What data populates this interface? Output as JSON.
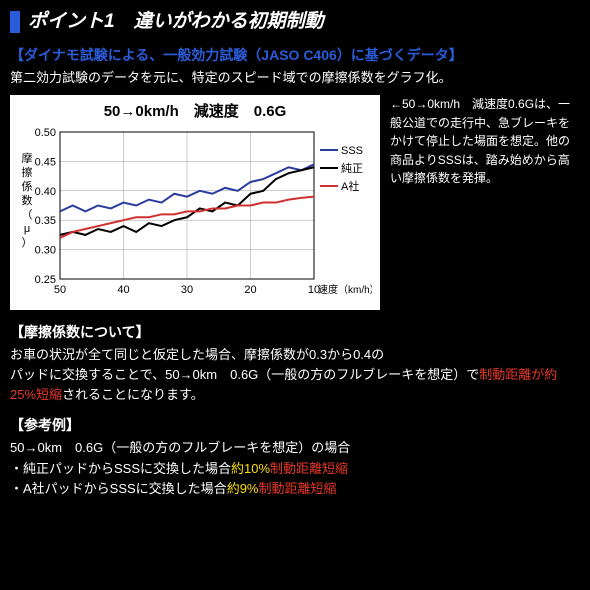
{
  "header": {
    "title": "ポイント1　違いがわかる初期制動"
  },
  "subtitle": "【ダイナモ試験による、一般効力試験（JASO C406）に基づくデータ】",
  "desc": "第二効力試験のデータを元に、特定のスピード域での摩擦係数をグラフ化。",
  "chart": {
    "title": "50→0km/h　減速度　0.6G",
    "type": "line",
    "ylabel": "摩擦係数（μ）",
    "xlabel": "速度（km/h）",
    "ylim": [
      0.25,
      0.5
    ],
    "yticks": [
      0.25,
      0.3,
      0.35,
      0.4,
      0.45,
      0.5
    ],
    "xlim_reversed": true,
    "xticks": [
      50,
      40,
      30,
      20,
      10
    ],
    "x_values": [
      50,
      48,
      46,
      44,
      42,
      40,
      38,
      36,
      34,
      32,
      30,
      28,
      26,
      24,
      22,
      20,
      18,
      16,
      14,
      12,
      10
    ],
    "series": [
      {
        "name": "SSS",
        "color": "#2a3c9e",
        "width": 2,
        "values": [
          0.365,
          0.375,
          0.365,
          0.375,
          0.37,
          0.38,
          0.375,
          0.385,
          0.38,
          0.395,
          0.39,
          0.4,
          0.395,
          0.405,
          0.4,
          0.415,
          0.42,
          0.43,
          0.44,
          0.435,
          0.445
        ]
      },
      {
        "name": "純正",
        "color": "#000000",
        "width": 2,
        "values": [
          0.325,
          0.33,
          0.325,
          0.335,
          0.33,
          0.34,
          0.33,
          0.345,
          0.34,
          0.35,
          0.355,
          0.37,
          0.365,
          0.38,
          0.375,
          0.395,
          0.4,
          0.42,
          0.43,
          0.435,
          0.44
        ]
      },
      {
        "name": "A社",
        "color": "#d03030",
        "width": 2,
        "values": [
          0.32,
          0.33,
          0.335,
          0.34,
          0.345,
          0.35,
          0.355,
          0.355,
          0.36,
          0.36,
          0.365,
          0.365,
          0.37,
          0.37,
          0.375,
          0.375,
          0.38,
          0.38,
          0.385,
          0.388,
          0.39
        ]
      }
    ],
    "axis_color": "#000",
    "grid_color": "#999",
    "label_fontsize": 11,
    "legend_fontsize": 11
  },
  "side_note": "←50→0km/h　減速度0.6Gは、一般公道での走行中、急ブレーキをかけて停止した場面を想定。他の商品よりSSSは、踏み始めから高い摩擦係数を発揮。",
  "section1": {
    "head": "【摩擦係数について】",
    "t1": "お車の状況が全て同じと仮定した場合、摩擦係数が0.3から0.4の",
    "t2a": "パッドに交換することで、50→0km　0.6G（一般の方のフルブレーキを想定）で",
    "t2b": "制動距離が約25%短縮",
    "t2c": "されることになります。"
  },
  "section2": {
    "head": "【参考例】",
    "l1": "50→0km　0.6G（一般の方のフルブレーキを想定）の場合",
    "l2a": "・純正パッドからSSSに交換した場合",
    "l2b": "約10%",
    "l2c": "制動距離短縮",
    "l3a": "・A社パッドからSSSに交換した場合",
    "l3b": "約9%",
    "l3c": "制動距離短縮"
  }
}
